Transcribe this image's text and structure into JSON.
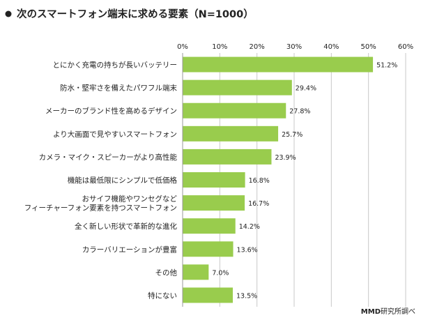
{
  "chart_data": {
    "type": "bar",
    "orientation": "horizontal",
    "title": "次のスマートフォン端末に求める要素（N=1000）",
    "categories": [
      "とにかく充電の持ちが長いバッテリー",
      "防水・堅牢さを備えたパワフル端末",
      "メーカーのブランド性を高めるデザイン",
      "より大画面で見やすいスマートフォン",
      "カメラ・マイク・スピーカーがより高性能",
      "機能は最低限にシンプルで低価格",
      "おサイフ機能やワンセグなど\nフィーチャーフォン要素を持つスマートフォン",
      "全く新しい形状で革新的な進化",
      "カラーバリエーションが豊富",
      "その他",
      "特にない"
    ],
    "values": [
      51.2,
      29.4,
      27.8,
      25.7,
      23.9,
      16.8,
      16.7,
      14.2,
      13.6,
      7.0,
      13.5
    ],
    "value_labels": [
      "51.2%",
      "29.4%",
      "27.8%",
      "25.7%",
      "23.9%",
      "16.8%",
      "16.7%",
      "14.2%",
      "13.6%",
      "7.0%",
      "13.5%"
    ],
    "xlim": [
      0,
      60
    ],
    "ticks": [
      0,
      10,
      20,
      30,
      40,
      50,
      60
    ],
    "tick_labels": [
      "0%",
      "10%",
      "20%",
      "30%",
      "40%",
      "50%",
      "60%"
    ],
    "grid": true,
    "legend": "none"
  },
  "colors": {
    "bar": "#99cc4d",
    "grid": "#c8c8c8",
    "axis": "#999999"
  },
  "source": {
    "bold": "MMD",
    "rest": "研究所調べ"
  }
}
